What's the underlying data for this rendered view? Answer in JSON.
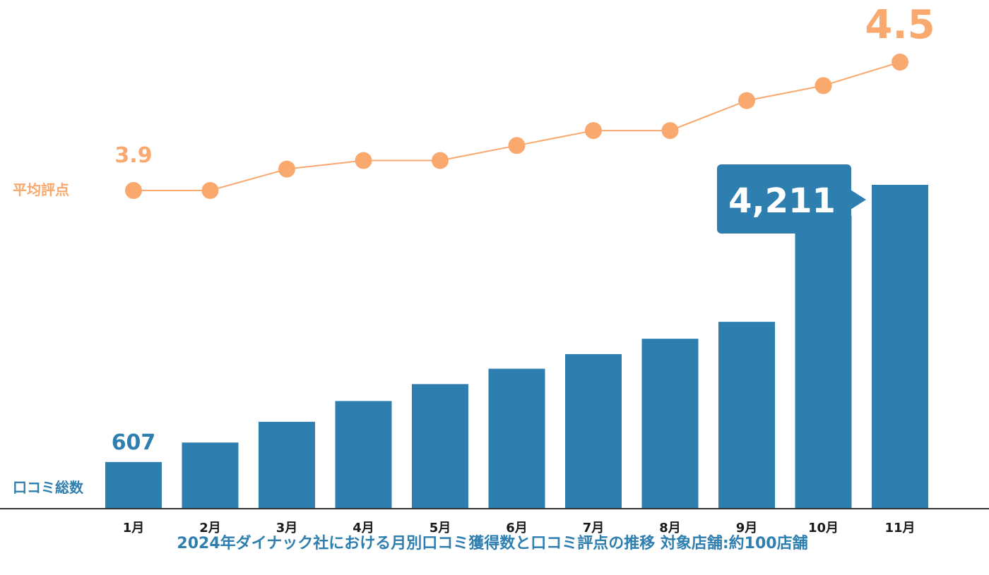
{
  "caption": "2024年ダイナック社における月別口コミ獲得数と口コミ評点の推移 対象店舗:約100店舗",
  "colors": {
    "bar": "#2e7fb0",
    "line": "#f9a86e",
    "axis": "#333333",
    "callout": "#2e7fb0"
  },
  "chart_data": {
    "type": "bar+line",
    "categories": [
      "1月",
      "2月",
      "3月",
      "4月",
      "5月",
      "6月",
      "7月",
      "8月",
      "9月",
      "10月",
      "11月"
    ],
    "series": [
      {
        "name": "口コミ総数",
        "type": "bar",
        "values": [
          607,
          860,
          1130,
          1400,
          1620,
          1820,
          2010,
          2210,
          2430,
          3810,
          4211
        ]
      },
      {
        "name": "平均評点",
        "type": "line",
        "values": [
          3.9,
          3.9,
          4.0,
          4.04,
          4.04,
          4.11,
          4.18,
          4.18,
          4.32,
          4.39,
          4.5
        ]
      }
    ],
    "labels": {
      "first_bar": "607",
      "last_bar": "4,211",
      "first_point": "3.9",
      "last_point": "4.5"
    },
    "bar_ylim": [
      0,
      4900
    ],
    "line_ylim": [
      3.0,
      4.6
    ],
    "grid": false,
    "legend": "left"
  }
}
